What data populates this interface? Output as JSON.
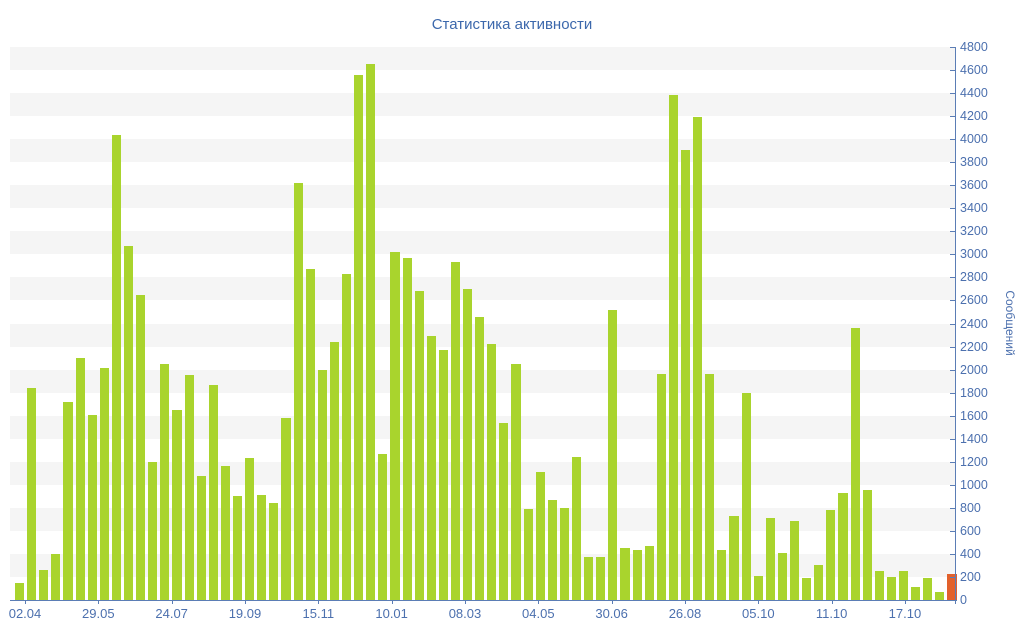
{
  "chart_data": {
    "type": "bar",
    "title": "Статистика активности",
    "ylabel": "Сообщений",
    "xlabel": "",
    "ylim": [
      0,
      4800
    ],
    "ytick_step": 200,
    "grid": "striped-horizontal-bands",
    "legend": "none",
    "x_labels": [
      "02.04",
      "29.05",
      "24.07",
      "19.09",
      "15.11",
      "10.01",
      "08.03",
      "04.05",
      "30.06",
      "26.08",
      "05.10",
      "11.10",
      "17.10"
    ],
    "values": [
      150,
      1840,
      260,
      400,
      1720,
      2100,
      1610,
      2015,
      4040,
      3070,
      2650,
      1200,
      2050,
      1650,
      1950,
      1080,
      1870,
      1160,
      900,
      1230,
      910,
      840,
      1580,
      3620,
      2870,
      2000,
      2240,
      2830,
      4560,
      4650,
      1270,
      3020,
      2970,
      2680,
      2290,
      2170,
      2930,
      2700,
      2460,
      2220,
      1540,
      2050,
      790,
      1110,
      870,
      800,
      1240,
      370,
      370,
      2520,
      450,
      430,
      470,
      1960,
      4380,
      3910,
      4190,
      1960,
      430,
      730,
      1800,
      205,
      710,
      410,
      690,
      190,
      300,
      780,
      930,
      2365,
      955,
      250,
      200,
      250,
      110,
      190,
      70,
      230
    ],
    "highlight_last_bar": true,
    "colors": {
      "bar": "#a9d42d",
      "last_bar": "#e2612c",
      "stripe_band": "#f5f5f5",
      "background": "#ffffff",
      "axis_line": "#5b7db5",
      "tick_text": "#4c70ae",
      "title_text": "#3c68ac"
    }
  }
}
